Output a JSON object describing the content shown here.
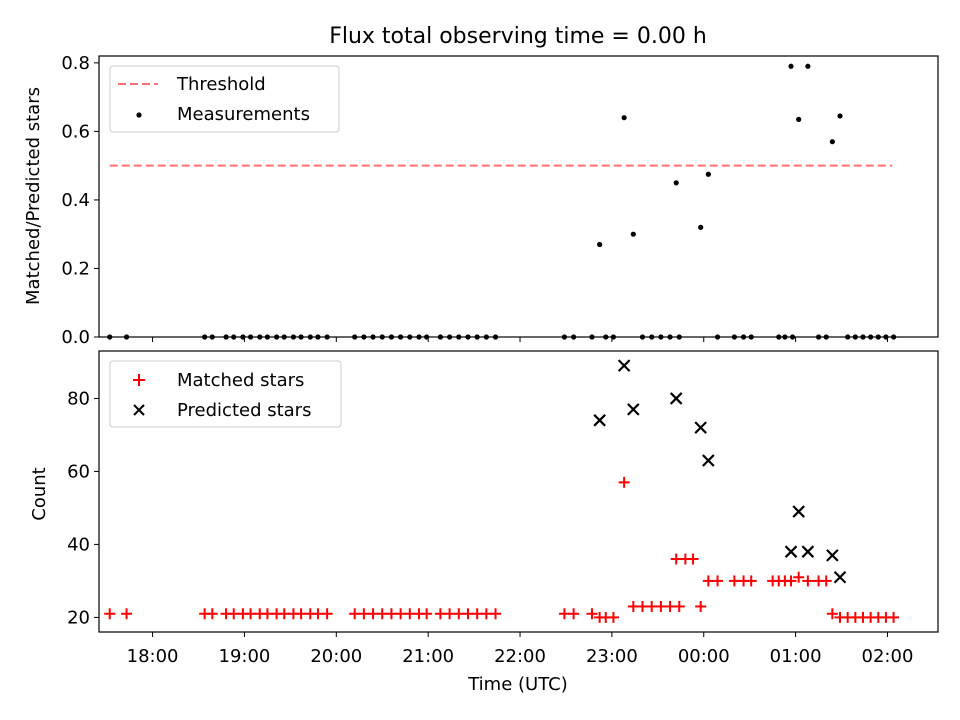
{
  "title": "Flux total observing time = 0.00 h",
  "xlabel": "Time (UTC)",
  "x_ticks": [
    "18:00",
    "19:00",
    "20:00",
    "21:00",
    "22:00",
    "23:00",
    "00:00",
    "01:00",
    "02:00"
  ],
  "colors": {
    "threshold": "#ff7070",
    "measurements": "#000000",
    "matched": "#ff0000",
    "predicted": "#000000"
  },
  "chart_data": [
    {
      "type": "scatter",
      "ylabel": "Matched/Predicted stars",
      "ylim": [
        0,
        0.82
      ],
      "y_ticks": [
        0.0,
        0.2,
        0.4,
        0.6,
        0.8
      ],
      "xlim": [
        "17:25",
        "02:33"
      ],
      "legend": {
        "placement": "top-left",
        "entries": [
          "Threshold",
          "Measurements"
        ]
      },
      "threshold": {
        "name": "Threshold",
        "value": 0.5,
        "x": [
          "17:32",
          "02:03"
        ],
        "style": "dashed"
      },
      "series": [
        {
          "name": "Measurements",
          "points": [
            [
              "17:32",
              0
            ],
            [
              "17:43",
              0
            ],
            [
              "18:34",
              0
            ],
            [
              "18:39",
              0
            ],
            [
              "18:48",
              0
            ],
            [
              "18:53",
              0
            ],
            [
              "18:59",
              0
            ],
            [
              "19:04",
              0
            ],
            [
              "19:10",
              0
            ],
            [
              "19:15",
              0
            ],
            [
              "19:21",
              0
            ],
            [
              "19:26",
              0
            ],
            [
              "19:32",
              0
            ],
            [
              "19:37",
              0
            ],
            [
              "19:43",
              0
            ],
            [
              "19:48",
              0
            ],
            [
              "19:54",
              0
            ],
            [
              "20:12",
              0
            ],
            [
              "20:18",
              0
            ],
            [
              "20:24",
              0
            ],
            [
              "20:30",
              0
            ],
            [
              "20:36",
              0
            ],
            [
              "20:42",
              0
            ],
            [
              "20:48",
              0
            ],
            [
              "20:54",
              0
            ],
            [
              "20:59",
              0
            ],
            [
              "21:08",
              0
            ],
            [
              "21:14",
              0
            ],
            [
              "21:20",
              0
            ],
            [
              "21:26",
              0
            ],
            [
              "21:32",
              0
            ],
            [
              "21:38",
              0
            ],
            [
              "21:44",
              0
            ],
            [
              "22:29",
              0
            ],
            [
              "22:35",
              0
            ],
            [
              "22:47",
              0
            ],
            [
              "22:56",
              0
            ],
            [
              "23:01",
              0
            ],
            [
              "22:52",
              0.27
            ],
            [
              "23:08",
              0.64
            ],
            [
              "23:14",
              0.3
            ],
            [
              "23:20",
              0
            ],
            [
              "23:26",
              0
            ],
            [
              "23:32",
              0
            ],
            [
              "23:38",
              0
            ],
            [
              "23:44",
              0
            ],
            [
              "23:42",
              0.45
            ],
            [
              "23:58",
              0.32
            ],
            [
              "00:03",
              0.475
            ],
            [
              "00:09",
              0
            ],
            [
              "00:20",
              0
            ],
            [
              "00:26",
              0
            ],
            [
              "00:31",
              0
            ],
            [
              "00:49",
              0
            ],
            [
              "00:53",
              0
            ],
            [
              "00:58",
              0
            ],
            [
              "00:57",
              0.79
            ],
            [
              "01:02",
              0.635
            ],
            [
              "01:08",
              0.79
            ],
            [
              "01:15",
              0
            ],
            [
              "01:20",
              0
            ],
            [
              "01:24",
              0.57
            ],
            [
              "01:29",
              0.645
            ],
            [
              "01:34",
              0
            ],
            [
              "01:39",
              0
            ],
            [
              "01:44",
              0
            ],
            [
              "01:49",
              0
            ],
            [
              "01:54",
              0
            ],
            [
              "01:59",
              0
            ],
            [
              "02:04",
              0
            ]
          ]
        }
      ]
    },
    {
      "type": "scatter",
      "ylabel": "Count",
      "ylim": [
        16,
        93
      ],
      "y_ticks": [
        20,
        40,
        60,
        80
      ],
      "xlim": [
        "17:25",
        "02:33"
      ],
      "legend": {
        "placement": "top-left",
        "entries": [
          "Matched stars",
          "Predicted stars"
        ]
      },
      "series": [
        {
          "name": "Matched stars",
          "marker": "plus",
          "points": [
            [
              "17:32",
              21
            ],
            [
              "17:43",
              21
            ],
            [
              "18:34",
              21
            ],
            [
              "18:39",
              21
            ],
            [
              "18:48",
              21
            ],
            [
              "18:53",
              21
            ],
            [
              "18:59",
              21
            ],
            [
              "19:04",
              21
            ],
            [
              "19:10",
              21
            ],
            [
              "19:15",
              21
            ],
            [
              "19:21",
              21
            ],
            [
              "19:26",
              21
            ],
            [
              "19:32",
              21
            ],
            [
              "19:37",
              21
            ],
            [
              "19:43",
              21
            ],
            [
              "19:48",
              21
            ],
            [
              "19:54",
              21
            ],
            [
              "20:12",
              21
            ],
            [
              "20:18",
              21
            ],
            [
              "20:24",
              21
            ],
            [
              "20:30",
              21
            ],
            [
              "20:36",
              21
            ],
            [
              "20:42",
              21
            ],
            [
              "20:48",
              21
            ],
            [
              "20:54",
              21
            ],
            [
              "20:59",
              21
            ],
            [
              "21:08",
              21
            ],
            [
              "21:14",
              21
            ],
            [
              "21:20",
              21
            ],
            [
              "21:26",
              21
            ],
            [
              "21:32",
              21
            ],
            [
              "21:38",
              21
            ],
            [
              "21:44",
              21
            ],
            [
              "22:29",
              21
            ],
            [
              "22:35",
              21
            ],
            [
              "22:47",
              21
            ],
            [
              "22:52",
              20
            ],
            [
              "22:56",
              20
            ],
            [
              "23:01",
              20
            ],
            [
              "23:08",
              57
            ],
            [
              "23:14",
              23
            ],
            [
              "23:20",
              23
            ],
            [
              "23:26",
              23
            ],
            [
              "23:32",
              23
            ],
            [
              "23:38",
              23
            ],
            [
              "23:44",
              23
            ],
            [
              "23:42",
              36
            ],
            [
              "23:48",
              36
            ],
            [
              "23:53",
              36
            ],
            [
              "23:58",
              23
            ],
            [
              "00:03",
              30
            ],
            [
              "00:09",
              30
            ],
            [
              "00:20",
              30
            ],
            [
              "00:26",
              30
            ],
            [
              "00:31",
              30
            ],
            [
              "00:45",
              30
            ],
            [
              "00:49",
              30
            ],
            [
              "00:53",
              30
            ],
            [
              "00:57",
              30
            ],
            [
              "01:02",
              31
            ],
            [
              "01:08",
              30
            ],
            [
              "01:15",
              30
            ],
            [
              "01:20",
              30
            ],
            [
              "01:24",
              21
            ],
            [
              "01:29",
              20
            ],
            [
              "01:34",
              20
            ],
            [
              "01:39",
              20
            ],
            [
              "01:44",
              20
            ],
            [
              "01:49",
              20
            ],
            [
              "01:54",
              20
            ],
            [
              "01:59",
              20
            ],
            [
              "02:04",
              20
            ]
          ]
        },
        {
          "name": "Predicted stars",
          "marker": "x",
          "points": [
            [
              "22:52",
              74
            ],
            [
              "23:08",
              89
            ],
            [
              "23:14",
              77
            ],
            [
              "23:42",
              80
            ],
            [
              "23:58",
              72
            ],
            [
              "00:03",
              63
            ],
            [
              "00:57",
              38
            ],
            [
              "01:02",
              49
            ],
            [
              "01:08",
              38
            ],
            [
              "01:24",
              37
            ],
            [
              "01:29",
              31
            ]
          ]
        }
      ]
    }
  ]
}
